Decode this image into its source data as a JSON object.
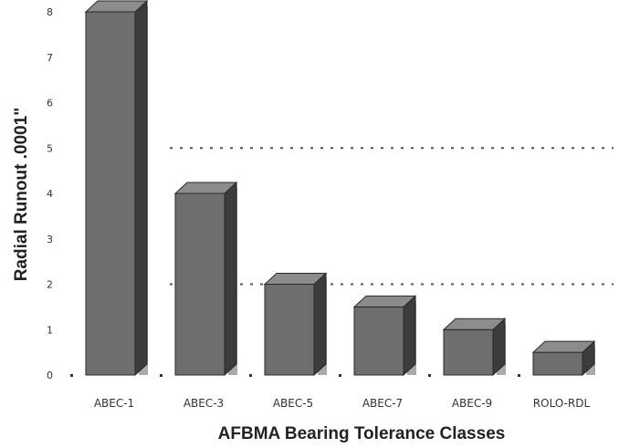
{
  "chart_data": {
    "type": "bar",
    "xlabel": "AFBMA Bearing Tolerance Classes",
    "ylabel": "Radial Runout .0001\"",
    "categories": [
      "ABEC-1",
      "ABEC-3",
      "ABEC-5",
      "ABEC-7",
      "ABEC-9",
      "ROLO-RDL"
    ],
    "values": [
      8,
      4,
      2,
      1.5,
      1,
      0.5
    ],
    "ylim": [
      0,
      8
    ],
    "yticks": [
      "0",
      "1",
      "2",
      "3",
      "4",
      "5",
      "6",
      "7",
      "8"
    ],
    "gridlines_at": [
      2,
      5
    ],
    "grid_style": "dotted",
    "legend": "none",
    "style": "3d",
    "colors": {
      "bar_front": "#6e6e6e",
      "bar_top": "#8c8c8c",
      "bar_side": "#3c3c3c",
      "bar_shadow": "#a9a9a9",
      "grid": "#555555",
      "axis_text": "#333333"
    }
  }
}
